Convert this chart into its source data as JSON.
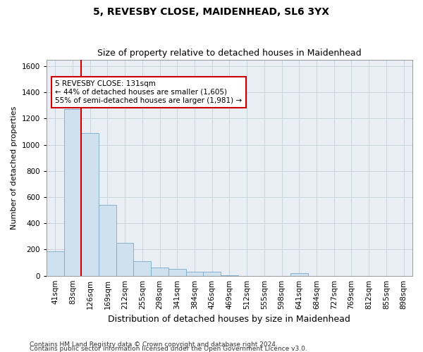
{
  "title1": "5, REVESBY CLOSE, MAIDENHEAD, SL6 3YX",
  "title2": "Size of property relative to detached houses in Maidenhead",
  "xlabel": "Distribution of detached houses by size in Maidenhead",
  "ylabel": "Number of detached properties",
  "footnote1": "Contains HM Land Registry data © Crown copyright and database right 2024.",
  "footnote2": "Contains public sector information licensed under the Open Government Licence v3.0.",
  "bin_labels": [
    "41sqm",
    "83sqm",
    "126sqm",
    "169sqm",
    "212sqm",
    "255sqm",
    "298sqm",
    "341sqm",
    "384sqm",
    "426sqm",
    "469sqm",
    "512sqm",
    "555sqm",
    "598sqm",
    "641sqm",
    "684sqm",
    "727sqm",
    "769sqm",
    "812sqm",
    "855sqm",
    "898sqm"
  ],
  "bar_values": [
    185,
    1270,
    1090,
    540,
    250,
    110,
    65,
    50,
    30,
    30,
    5,
    0,
    0,
    0,
    20,
    0,
    0,
    0,
    0,
    0,
    0
  ],
  "bar_color": "#cfe0ee",
  "bar_edge_color": "#7aaac8",
  "ylim": [
    0,
    1650
  ],
  "yticks": [
    0,
    200,
    400,
    600,
    800,
    1000,
    1200,
    1400,
    1600
  ],
  "vline_x_index": 2,
  "annotation_line1": "5 REVESBY CLOSE: 131sqm",
  "annotation_line2": "← 44% of detached houses are smaller (1,605)",
  "annotation_line3": "55% of semi-detached houses are larger (1,981) →",
  "annotation_box_color": "#ffffff",
  "annotation_box_edge": "#cc0000",
  "vline_color": "#cc0000",
  "grid_color": "#c8d4de",
  "background_color": "#e8eef4",
  "title1_fontsize": 10,
  "title2_fontsize": 9,
  "ylabel_fontsize": 8,
  "xlabel_fontsize": 9,
  "tick_fontsize": 7.5,
  "footnote_fontsize": 6.5
}
